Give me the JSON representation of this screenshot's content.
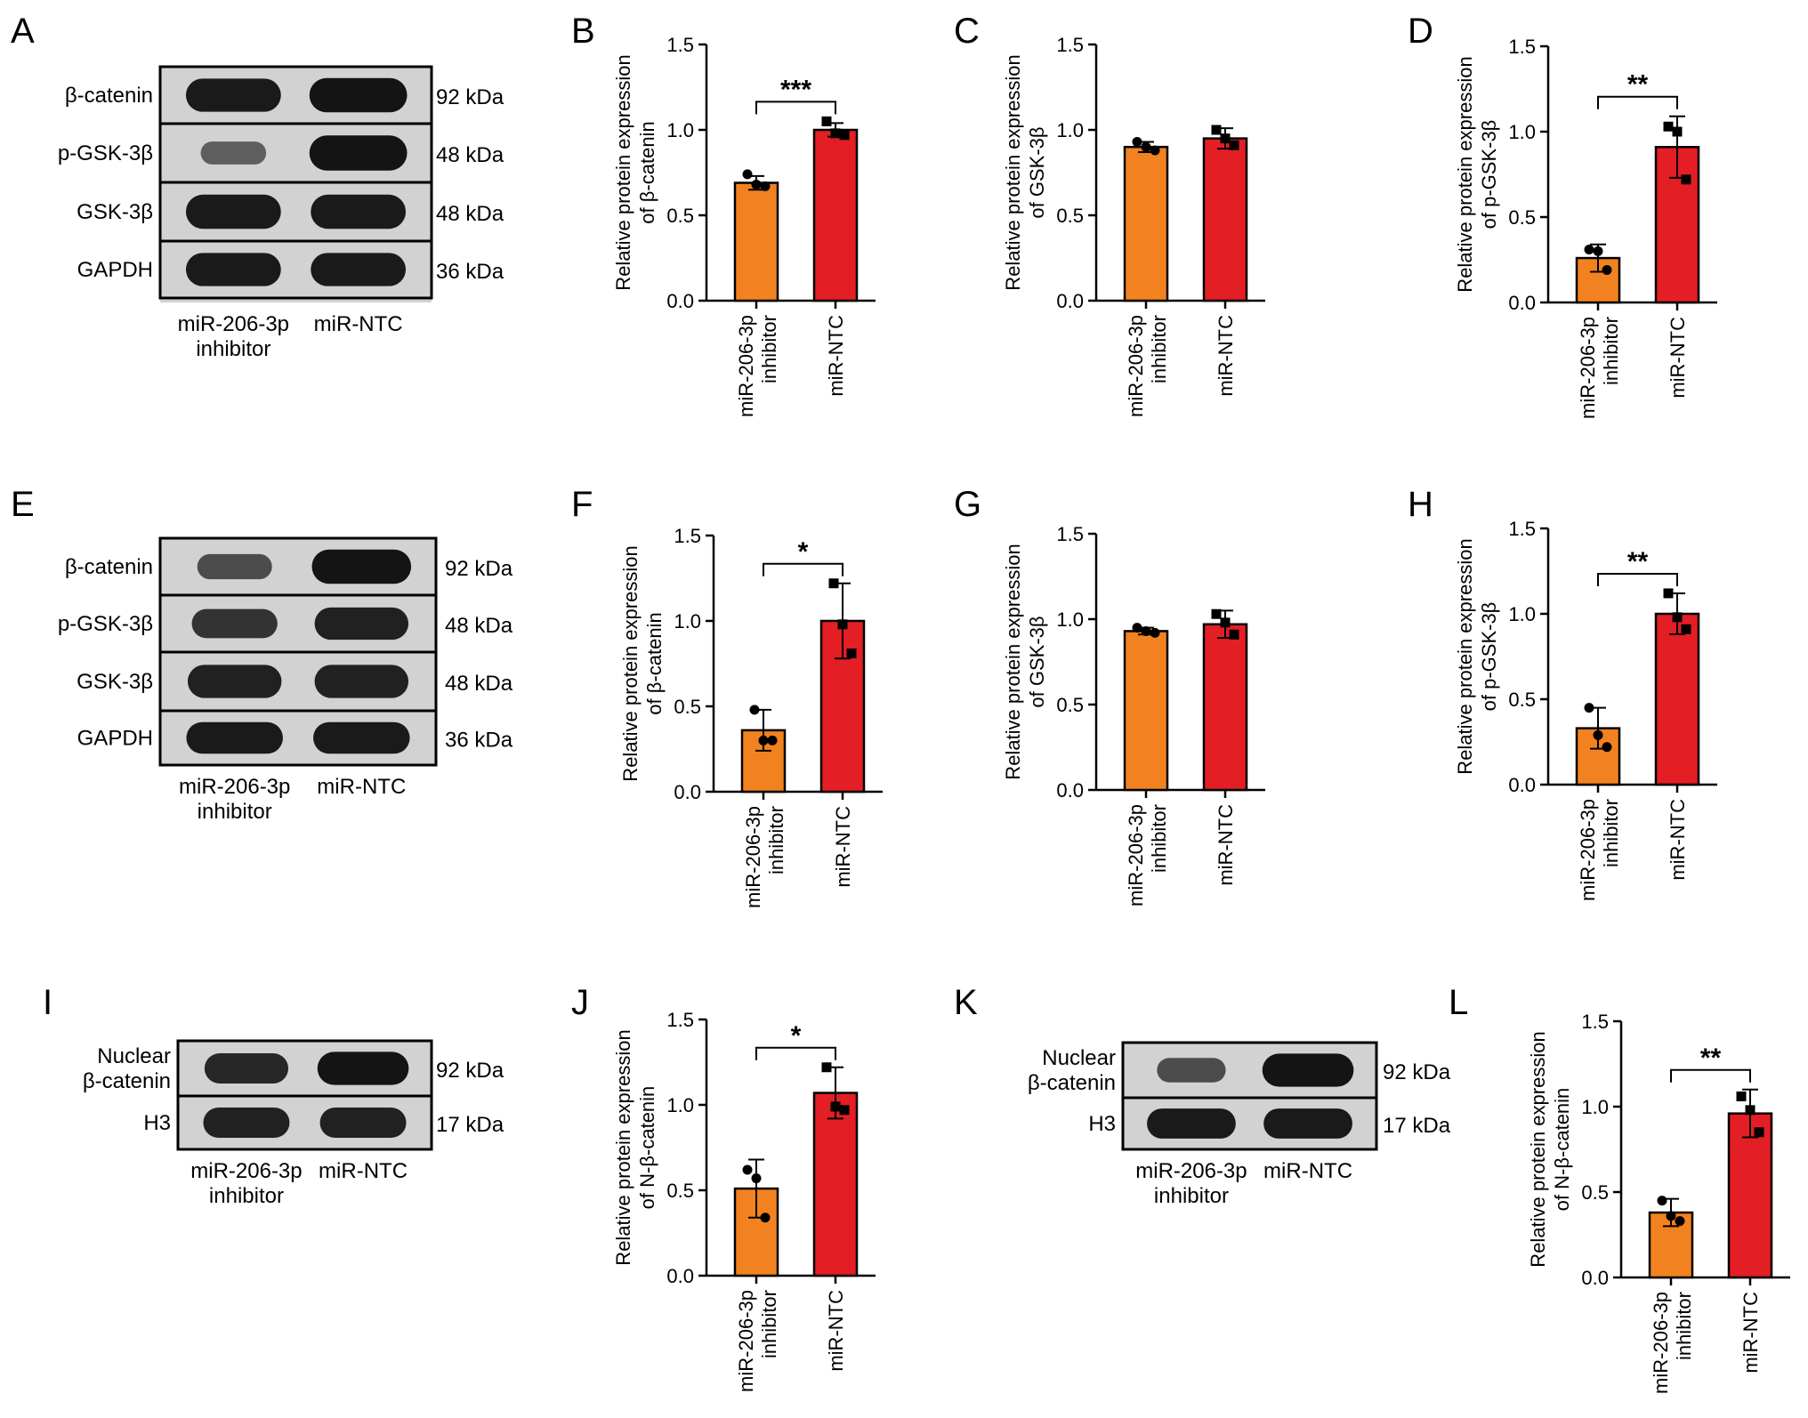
{
  "colors": {
    "inhibitor": "#F28220",
    "control": "#E31E24",
    "axis": "#000000",
    "blot_bg": "#d2d2d2",
    "band": "#141414"
  },
  "blots": [
    {
      "panel": "A",
      "lanes": [
        "miR-206-3p\ninhibitor",
        "miR-NTC"
      ],
      "rows": [
        {
          "protein": "β-catenin",
          "size": "92 kDa",
          "intensity": [
            0.95,
            1.0
          ]
        },
        {
          "protein": "p-GSK-3β",
          "size": "48 kDa",
          "intensity": [
            0.4,
            1.0
          ]
        },
        {
          "protein": "GSK-3β",
          "size": "48 kDa",
          "intensity": [
            0.95,
            0.95
          ]
        },
        {
          "protein": "GAPDH",
          "size": "36 kDa",
          "intensity": [
            0.95,
            0.95
          ]
        }
      ]
    },
    {
      "panel": "E",
      "lanes": [
        "miR-206-3p\ninhibitor",
        "miR-NTC"
      ],
      "rows": [
        {
          "protein": "β-catenin",
          "size": "92 kDa",
          "intensity": [
            0.55,
            1.0
          ]
        },
        {
          "protein": "p-GSK-3β",
          "size": "48 kDa",
          "intensity": [
            0.75,
            0.9
          ]
        },
        {
          "protein": "GSK-3β",
          "size": "48 kDa",
          "intensity": [
            0.9,
            0.9
          ]
        },
        {
          "protein": "GAPDH",
          "size": "36 kDa",
          "intensity": [
            0.95,
            0.95
          ]
        }
      ]
    },
    {
      "panel": "I",
      "lanes": [
        "miR-206-3p\ninhibitor",
        "miR-NTC"
      ],
      "rows": [
        {
          "protein": "Nuclear\nβ-catenin",
          "size": "92 kDa",
          "intensity": [
            0.85,
            1.0
          ]
        },
        {
          "protein": "H3",
          "size": "17 kDa",
          "intensity": [
            0.9,
            0.9
          ]
        }
      ]
    },
    {
      "panel": "K",
      "lanes": [
        "miR-206-3p\ninhibitor",
        "miR-NTC"
      ],
      "rows": [
        {
          "protein": "Nuclear\nβ-catenin",
          "size": "92 kDa",
          "intensity": [
            0.55,
            1.0
          ]
        },
        {
          "protein": "H3",
          "size": "17 kDa",
          "intensity": [
            0.95,
            0.95
          ]
        }
      ]
    }
  ],
  "chart_data": [
    {
      "panel": "B",
      "type": "bar",
      "ylabel": "Relative protein expression\nof β-catenin",
      "categories": [
        "miR-206-3p\ninhibitor",
        "miR-NTC"
      ],
      "values": [
        0.69,
        1.0
      ],
      "errors": [
        0.04,
        0.04
      ],
      "points": [
        [
          0.74,
          0.68,
          0.67
        ],
        [
          1.05,
          0.98,
          0.97
        ]
      ],
      "significance": "***",
      "ylim": [
        0,
        1.5
      ],
      "yticks": [
        "0.0",
        "0.5",
        "1.0",
        "1.5"
      ]
    },
    {
      "panel": "C",
      "type": "bar",
      "ylabel": "Relative protein expression\nof GSK-3β",
      "categories": [
        "miR-206-3p\ninhibitor",
        "miR-NTC"
      ],
      "values": [
        0.9,
        0.95
      ],
      "errors": [
        0.03,
        0.06
      ],
      "points": [
        [
          0.93,
          0.9,
          0.88
        ],
        [
          1.0,
          0.95,
          0.91
        ]
      ],
      "significance": "",
      "ylim": [
        0,
        1.5
      ],
      "yticks": [
        "0.0",
        "0.5",
        "1.0",
        "1.5"
      ]
    },
    {
      "panel": "D",
      "type": "bar",
      "ylabel": "Relative protein expression\nof p-GSK-3β",
      "categories": [
        "miR-206-3p\ninhibitor",
        "miR-NTC"
      ],
      "values": [
        0.26,
        0.91
      ],
      "errors": [
        0.08,
        0.18
      ],
      "points": [
        [
          0.31,
          0.3,
          0.19
        ],
        [
          1.03,
          1.0,
          0.72
        ]
      ],
      "significance": "**",
      "ylim": [
        0,
        1.5
      ],
      "yticks": [
        "0.0",
        "0.5",
        "1.0",
        "1.5"
      ]
    },
    {
      "panel": "F",
      "type": "bar",
      "ylabel": "Relative protein expression\nof β-catenin",
      "categories": [
        "miR-206-3p\ninhibitor",
        "miR-NTC"
      ],
      "values": [
        0.36,
        1.0
      ],
      "errors": [
        0.12,
        0.22
      ],
      "points": [
        [
          0.48,
          0.3,
          0.3
        ],
        [
          1.22,
          0.98,
          0.81
        ]
      ],
      "significance": "*",
      "ylim": [
        0,
        1.5
      ],
      "yticks": [
        "0.0",
        "0.5",
        "1.0",
        "1.5"
      ]
    },
    {
      "panel": "G",
      "type": "bar",
      "ylabel": "Relative protein expression\nof GSK-3β",
      "categories": [
        "miR-206-3p\ninhibitor",
        "miR-NTC"
      ],
      "values": [
        0.93,
        0.97
      ],
      "errors": [
        0.02,
        0.08
      ],
      "points": [
        [
          0.95,
          0.93,
          0.92
        ],
        [
          1.03,
          0.98,
          0.91
        ]
      ],
      "significance": "",
      "ylim": [
        0,
        1.5
      ],
      "yticks": [
        "0.0",
        "0.5",
        "1.0",
        "1.5"
      ]
    },
    {
      "panel": "H",
      "type": "bar",
      "ylabel": "Relative protein expression\nof p-GSK-3β",
      "categories": [
        "miR-206-3p\ninhibitor",
        "miR-NTC"
      ],
      "values": [
        0.33,
        1.0
      ],
      "errors": [
        0.12,
        0.12
      ],
      "points": [
        [
          0.45,
          0.29,
          0.22
        ],
        [
          1.12,
          0.98,
          0.91
        ]
      ],
      "significance": "**",
      "ylim": [
        0,
        1.5
      ],
      "yticks": [
        "0.0",
        "0.5",
        "1.0",
        "1.5"
      ]
    },
    {
      "panel": "J",
      "type": "bar",
      "ylabel": "Relative protein expression\nof N-β-catenin",
      "categories": [
        "miR-206-3p\ninhibitor",
        "miR-NTC"
      ],
      "values": [
        0.51,
        1.07
      ],
      "errors": [
        0.17,
        0.15
      ],
      "points": [
        [
          0.62,
          0.57,
          0.34
        ],
        [
          1.22,
          0.99,
          0.97
        ]
      ],
      "significance": "*",
      "ylim": [
        0,
        1.5
      ],
      "yticks": [
        "0.0",
        "0.5",
        "1.0",
        "1.5"
      ]
    },
    {
      "panel": "L",
      "type": "bar",
      "ylabel": "Relative protein expression\nof N-β-catenin",
      "categories": [
        "miR-206-3p\ninhibitor",
        "miR-NTC"
      ],
      "values": [
        0.38,
        0.96
      ],
      "errors": [
        0.08,
        0.14
      ],
      "points": [
        [
          0.45,
          0.36,
          0.33
        ],
        [
          1.06,
          0.98,
          0.85
        ]
      ],
      "significance": "**",
      "ylim": [
        0,
        1.5
      ],
      "yticks": [
        "0.0",
        "0.5",
        "1.0",
        "1.5"
      ]
    }
  ]
}
